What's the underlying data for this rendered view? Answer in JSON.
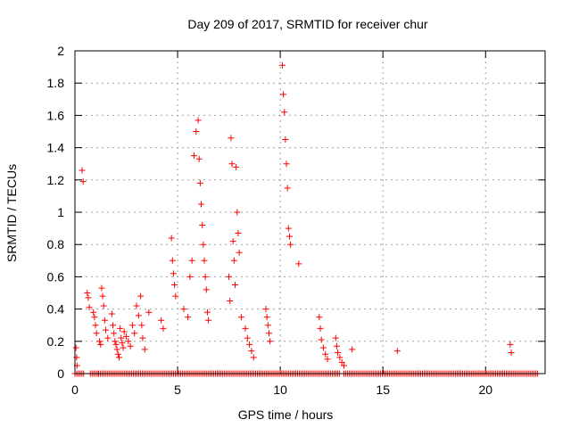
{
  "chart_data": {
    "type": "scatter",
    "title": "Day 209 of 2017, SRMTID for receiver chur",
    "xlabel": "GPS time / hours",
    "ylabel": "SRMTID / TECUs",
    "xlim": [
      0,
      22.9
    ],
    "ylim": [
      0,
      2
    ],
    "xticks": [
      0,
      5,
      10,
      15,
      20
    ],
    "xtick_labels": [
      "0",
      "5",
      "10",
      "15",
      "20"
    ],
    "yticks": [
      0,
      0.2,
      0.4,
      0.6,
      0.8,
      1,
      1.2,
      1.4,
      1.6,
      1.8,
      2
    ],
    "ytick_labels": [
      "0",
      "0.2",
      "0.4",
      "0.6",
      "0.8",
      "1",
      "1.2",
      "1.4",
      "1.6",
      "1.8",
      "2"
    ],
    "grid": true,
    "marker": "+",
    "color": "#ff0000",
    "series": [
      {
        "name": "SRMTID",
        "x": [
          0.05,
          0.08,
          0.1,
          0.35,
          0.4,
          0.6,
          0.65,
          0.7,
          0.9,
          0.95,
          1.0,
          1.05,
          1.2,
          1.25,
          1.3,
          1.35,
          1.4,
          1.45,
          1.5,
          1.6,
          1.8,
          1.85,
          1.9,
          1.95,
          2.0,
          2.05,
          2.1,
          2.15,
          2.2,
          2.25,
          2.3,
          2.35,
          2.4,
          2.5,
          2.6,
          2.7,
          2.8,
          2.9,
          3.0,
          3.1,
          3.2,
          3.25,
          3.3,
          3.4,
          3.6,
          4.2,
          4.3,
          4.7,
          4.75,
          4.8,
          4.85,
          4.9,
          5.3,
          5.5,
          5.6,
          5.7,
          5.8,
          5.9,
          6.0,
          6.05,
          6.1,
          6.15,
          6.2,
          6.25,
          6.3,
          6.35,
          6.4,
          6.45,
          6.5,
          7.5,
          7.55,
          7.6,
          7.65,
          7.7,
          7.75,
          7.8,
          7.85,
          7.9,
          7.95,
          8.0,
          8.1,
          8.3,
          8.4,
          8.5,
          8.6,
          8.7,
          9.3,
          9.35,
          9.4,
          9.45,
          9.5,
          10.1,
          10.15,
          10.2,
          10.25,
          10.3,
          10.35,
          10.4,
          10.45,
          10.5,
          10.9,
          11.9,
          11.95,
          12.0,
          12.1,
          12.2,
          12.3,
          12.7,
          12.75,
          12.8,
          12.9,
          13.0,
          13.1,
          13.5,
          15.7,
          21.2,
          21.25
        ],
        "y": [
          0.16,
          0.1,
          0.05,
          1.26,
          1.19,
          0.5,
          0.47,
          0.41,
          0.38,
          0.35,
          0.3,
          0.25,
          0.2,
          0.18,
          0.53,
          0.48,
          0.42,
          0.33,
          0.27,
          0.22,
          0.37,
          0.3,
          0.25,
          0.2,
          0.18,
          0.15,
          0.12,
          0.1,
          0.28,
          0.22,
          0.19,
          0.16,
          0.26,
          0.23,
          0.2,
          0.17,
          0.3,
          0.25,
          0.42,
          0.36,
          0.48,
          0.3,
          0.22,
          0.15,
          0.38,
          0.33,
          0.28,
          0.84,
          0.7,
          0.62,
          0.55,
          0.48,
          0.4,
          0.35,
          0.6,
          0.7,
          1.35,
          1.5,
          1.57,
          1.33,
          1.18,
          1.05,
          0.92,
          0.8,
          0.7,
          0.6,
          0.52,
          0.38,
          0.33,
          0.6,
          0.45,
          1.46,
          1.3,
          0.82,
          0.7,
          0.55,
          1.28,
          1.0,
          0.87,
          0.75,
          0.35,
          0.28,
          0.22,
          0.18,
          0.14,
          0.1,
          0.4,
          0.35,
          0.3,
          0.25,
          0.2,
          1.91,
          1.73,
          1.62,
          1.45,
          1.3,
          1.15,
          0.9,
          0.85,
          0.8,
          0.68,
          0.35,
          0.28,
          0.21,
          0.16,
          0.12,
          0.09,
          0.22,
          0.17,
          0.13,
          0.1,
          0.07,
          0.05,
          0.15,
          0.14,
          0.18,
          0.13
        ]
      }
    ],
    "baseline": {
      "name": "zero-valued samples",
      "y": 0,
      "segments": [
        [
          0,
          0.45
        ],
        [
          0.75,
          1.1
        ],
        [
          1.15,
          12.95
        ],
        [
          13.1,
          22.6
        ]
      ]
    }
  }
}
